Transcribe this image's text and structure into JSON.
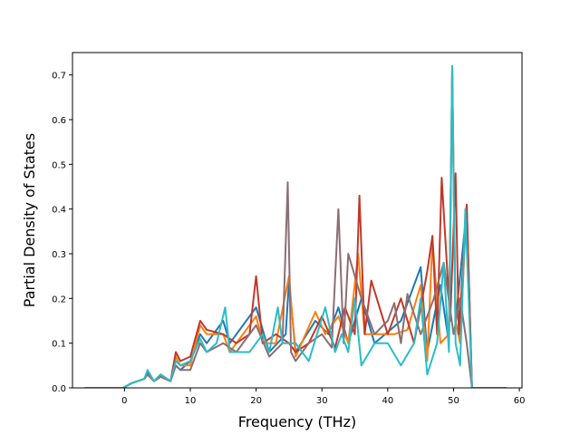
{
  "chart_data": {
    "type": "line",
    "xlabel": "Frequency (THz)",
    "ylabel": "Partial Density of States",
    "xlim": [
      -7.9,
      60.4
    ],
    "ylim": [
      0,
      0.75
    ],
    "x_ticks": [
      0,
      10,
      20,
      30,
      40,
      50,
      60
    ],
    "y_ticks": [
      0.0,
      0.1,
      0.2,
      0.3,
      0.4,
      0.5,
      0.6,
      0.7
    ],
    "grid": false,
    "legend": "none",
    "series": [
      {
        "color": "#1f77b4",
        "x": [
          -6,
          -0.2,
          1,
          3,
          3.5,
          4.5,
          5.5,
          7,
          7.8,
          8.5,
          10,
          11.5,
          12.5,
          15,
          16,
          20,
          22,
          24.5,
          25,
          26,
          29,
          31,
          32.5,
          34,
          36,
          38,
          42,
          45,
          46,
          48,
          49.3,
          49.8,
          50.3,
          51,
          52,
          52.8,
          58
        ],
        "y": [
          0,
          0,
          0.01,
          0.02,
          0.035,
          0.015,
          0.03,
          0.015,
          0.05,
          0.04,
          0.06,
          0.12,
          0.1,
          0.15,
          0.1,
          0.18,
          0.08,
          0.12,
          0.24,
          0.08,
          0.15,
          0.12,
          0.18,
          0.1,
          0.2,
          0.1,
          0.15,
          0.27,
          0.08,
          0.23,
          0.1,
          0.71,
          0.15,
          0.25,
          0.4,
          0,
          0
        ]
      },
      {
        "color": "#ff7f0e",
        "x": [
          -6,
          -0.2,
          1,
          3,
          3.5,
          4.5,
          5.5,
          7,
          7.8,
          8.5,
          10,
          11.5,
          12.5,
          15,
          16,
          20,
          21,
          23,
          25,
          26,
          29,
          30.5,
          32.5,
          34,
          35.5,
          36.5,
          38,
          41,
          43,
          45,
          46,
          46.8,
          48,
          49.3,
          49.8,
          50.3,
          51,
          52,
          52.8,
          58
        ],
        "y": [
          0,
          0,
          0.01,
          0.02,
          0.03,
          0.015,
          0.025,
          0.015,
          0.07,
          0.05,
          0.05,
          0.14,
          0.12,
          0.12,
          0.08,
          0.16,
          0.1,
          0.1,
          0.25,
          0.07,
          0.17,
          0.12,
          0.16,
          0.1,
          0.3,
          0.12,
          0.12,
          0.12,
          0.13,
          0.23,
          0.06,
          0.33,
          0.1,
          0.12,
          0.72,
          0.15,
          0.1,
          0.41,
          0,
          0
        ]
      },
      {
        "color": "#c0392b",
        "x": [
          -6,
          -0.2,
          1,
          3,
          3.5,
          4.5,
          5.5,
          7,
          7.8,
          8.5,
          10,
          11.5,
          12.5,
          15,
          17,
          19,
          20,
          21,
          23,
          25,
          26,
          28,
          30,
          32,
          33.5,
          35,
          35.7,
          36.5,
          37.5,
          40,
          42,
          44,
          46,
          46.8,
          47.5,
          48.2,
          49.5,
          50.3,
          50.8,
          52,
          52.8,
          58
        ],
        "y": [
          0,
          0,
          0.01,
          0.02,
          0.03,
          0.015,
          0.025,
          0.015,
          0.08,
          0.06,
          0.07,
          0.15,
          0.13,
          0.12,
          0.1,
          0.12,
          0.25,
          0.1,
          0.12,
          0.1,
          0.08,
          0.1,
          0.16,
          0.09,
          0.18,
          0.12,
          0.43,
          0.12,
          0.24,
          0.12,
          0.2,
          0.1,
          0.26,
          0.34,
          0.12,
          0.47,
          0.15,
          0.48,
          0.12,
          0.41,
          0,
          0
        ]
      },
      {
        "color": "#8c6e73",
        "x": [
          -6,
          -0.2,
          1,
          3,
          3.5,
          4.5,
          5.5,
          7,
          7.8,
          8.5,
          10,
          11.5,
          12.5,
          15,
          17,
          20,
          22,
          24,
          24.8,
          25.3,
          26,
          28,
          30,
          31.5,
          32.5,
          33.3,
          34,
          36,
          38,
          40,
          41,
          42,
          43,
          45,
          47,
          48.5,
          50,
          51,
          52,
          52.8,
          58
        ],
        "y": [
          0,
          0,
          0.01,
          0.02,
          0.03,
          0.015,
          0.025,
          0.015,
          0.05,
          0.04,
          0.04,
          0.1,
          0.08,
          0.1,
          0.08,
          0.14,
          0.07,
          0.1,
          0.46,
          0.08,
          0.06,
          0.1,
          0.12,
          0.09,
          0.4,
          0.1,
          0.3,
          0.2,
          0.12,
          0.15,
          0.19,
          0.1,
          0.21,
          0.12,
          0.2,
          0.28,
          0.12,
          0.2,
          0.1,
          0,
          0
        ]
      },
      {
        "color": "#2bbcc8",
        "x": [
          -6,
          -0.2,
          1,
          3,
          3.5,
          4.5,
          5.5,
          7,
          7.8,
          8.5,
          10,
          11.5,
          12.5,
          14,
          15.3,
          16,
          19,
          21,
          22,
          23.3,
          24,
          26,
          28,
          30.5,
          32,
          33,
          34,
          35,
          36,
          38,
          40,
          42,
          44,
          45,
          46,
          47.5,
          48.5,
          49.3,
          49.8,
          50.3,
          51,
          51.8,
          52.8,
          58
        ],
        "y": [
          0,
          0,
          0.01,
          0.02,
          0.04,
          0.015,
          0.03,
          0.015,
          0.06,
          0.05,
          0.06,
          0.11,
          0.08,
          0.1,
          0.18,
          0.08,
          0.08,
          0.12,
          0.08,
          0.18,
          0.1,
          0.1,
          0.06,
          0.18,
          0.08,
          0.12,
          0.08,
          0.2,
          0.05,
          0.1,
          0.1,
          0.05,
          0.1,
          0.2,
          0.03,
          0.1,
          0.28,
          0.08,
          0.72,
          0.1,
          0.05,
          0.4,
          0,
          0
        ]
      }
    ]
  }
}
